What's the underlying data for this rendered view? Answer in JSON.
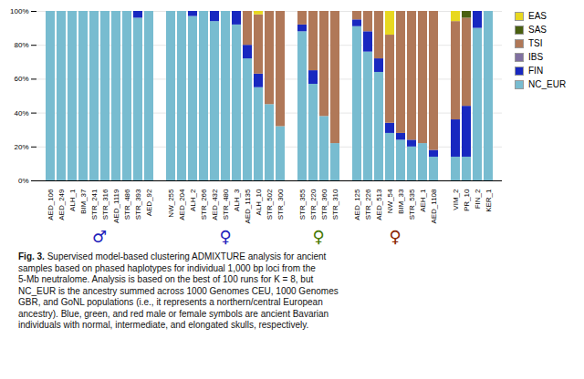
{
  "chart_data": {
    "type": "bar",
    "stacked": true,
    "categories": [
      "AED_106",
      "AED_249",
      "ALH_1",
      "BIM_37",
      "STR_241",
      "STR_316",
      "AED_1119",
      "STR_486",
      "STR_393",
      "AED_92",
      "NW_255",
      "AED_204",
      "ALH_2",
      "STR_266",
      "AED_432",
      "STR_480",
      "ALH_3",
      "AED_1135",
      "ALH_10",
      "STR_502",
      "STR_300",
      "STR_355",
      "STR_220",
      "STR_360",
      "STR_310",
      "AED_125",
      "STR_226",
      "AED_513",
      "NW_54",
      "BIM_33",
      "STR_535",
      "AEH_1",
      "AED_1108",
      "VIM_2",
      "PR_10",
      "FIN_2",
      "KER_1"
    ],
    "series": [
      {
        "name": "EAS",
        "color": "#e8d820",
        "values": [
          0,
          0,
          0,
          0,
          0,
          0,
          0,
          0,
          0,
          0,
          0,
          0,
          0,
          0,
          0,
          0,
          0,
          0,
          0.02,
          0,
          0,
          0,
          0,
          0,
          0,
          0,
          0,
          0,
          0.14,
          0,
          0,
          0,
          0,
          0.06,
          0,
          0,
          0
        ]
      },
      {
        "name": "SAS",
        "color": "#4a6010",
        "values": [
          0,
          0,
          0,
          0,
          0,
          0,
          0,
          0,
          0,
          0,
          0,
          0,
          0,
          0,
          0,
          0,
          0,
          0,
          0,
          0,
          0,
          0,
          0,
          0,
          0,
          0,
          0,
          0,
          0,
          0,
          0,
          0,
          0,
          0,
          0.04,
          0,
          0
        ]
      },
      {
        "name": "TSI",
        "color": "#b07858",
        "values": [
          0,
          0,
          0,
          0,
          0,
          0,
          0,
          0,
          0,
          0,
          0,
          0,
          0,
          0,
          0,
          0,
          0,
          0.2,
          0.35,
          0.55,
          0.68,
          0.08,
          0.35,
          0.62,
          0.78,
          0.05,
          0.12,
          0.28,
          0.52,
          0.72,
          0.76,
          0.78,
          0.82,
          0.58,
          0.52,
          0,
          0
        ]
      },
      {
        "name": "IBS",
        "color": "#8070a0",
        "values": [
          0,
          0,
          0,
          0,
          0,
          0,
          0,
          0,
          0,
          0,
          0,
          0,
          0,
          0,
          0,
          0,
          0,
          0,
          0,
          0,
          0,
          0,
          0,
          0,
          0,
          0,
          0,
          0,
          0,
          0,
          0,
          0,
          0,
          0,
          0,
          0,
          0
        ]
      },
      {
        "name": "FIN",
        "color": "#1828c0",
        "values": [
          0,
          0,
          0,
          0,
          0,
          0,
          0,
          0,
          0.04,
          0,
          0,
          0,
          0.03,
          0,
          0.06,
          0,
          0.08,
          0.08,
          0.08,
          0,
          0,
          0.04,
          0.08,
          0,
          0,
          0.04,
          0.12,
          0.08,
          0.06,
          0.04,
          0.04,
          0,
          0.04,
          0.22,
          0.3,
          0.1,
          0
        ]
      },
      {
        "name": "NC_EUR",
        "color": "#78bcd0",
        "values": [
          1,
          1,
          1,
          1,
          1,
          1,
          1,
          1,
          0.96,
          1,
          1,
          1,
          0.97,
          1,
          0.94,
          1,
          0.92,
          0.72,
          0.55,
          0.45,
          0.32,
          0.88,
          0.57,
          0.38,
          0.22,
          0.91,
          0.76,
          0.64,
          0.28,
          0.24,
          0.2,
          0.22,
          0.14,
          0.14,
          0.14,
          0.9,
          1
        ]
      }
    ],
    "ylim": [
      0,
      1
    ],
    "yticks": [
      {
        "value": 0,
        "label": "0%"
      },
      {
        "value": 0.2,
        "label": "20%"
      },
      {
        "value": 0.4,
        "label": "40%"
      },
      {
        "value": 0.6,
        "label": "60%"
      },
      {
        "value": 0.8,
        "label": "80%"
      },
      {
        "value": 1,
        "label": "100%"
      }
    ],
    "grid": true,
    "legend": "upper right",
    "annotations": [
      {
        "text": "♂",
        "color": "#2222bb",
        "from": "AED_106",
        "to": "AED_92"
      },
      {
        "text": "♀",
        "color": "#2222bb",
        "from": "NW_255",
        "to": "STR_300"
      },
      {
        "text": "♀",
        "color": "#447700",
        "from": "STR_355",
        "to": "STR_310"
      },
      {
        "text": "♀",
        "color": "#882200",
        "from": "AED_125",
        "to": "AED_1108"
      }
    ],
    "caption_label": "Fig. 3.",
    "caption": "   Supervised model-based clustering ADMIXTURE analysis for ancient\nsamples based on phased haplotypes for individual 1,000 bp loci from the\n5-Mb neutralome. Analysis is based on the best of 100 runs for K = 8, but\nNC_EUR is the ancestry summed across 1000 Genomes CEU, 1000 Genomes\nGBR, and GoNL populations (i.e., it represents a northern/central European\nancestry). Blue, green, and red male or female symbols are ancient Bavarian\nindividuals with normal, intermediate, and elongated skulls, respectively."
  }
}
